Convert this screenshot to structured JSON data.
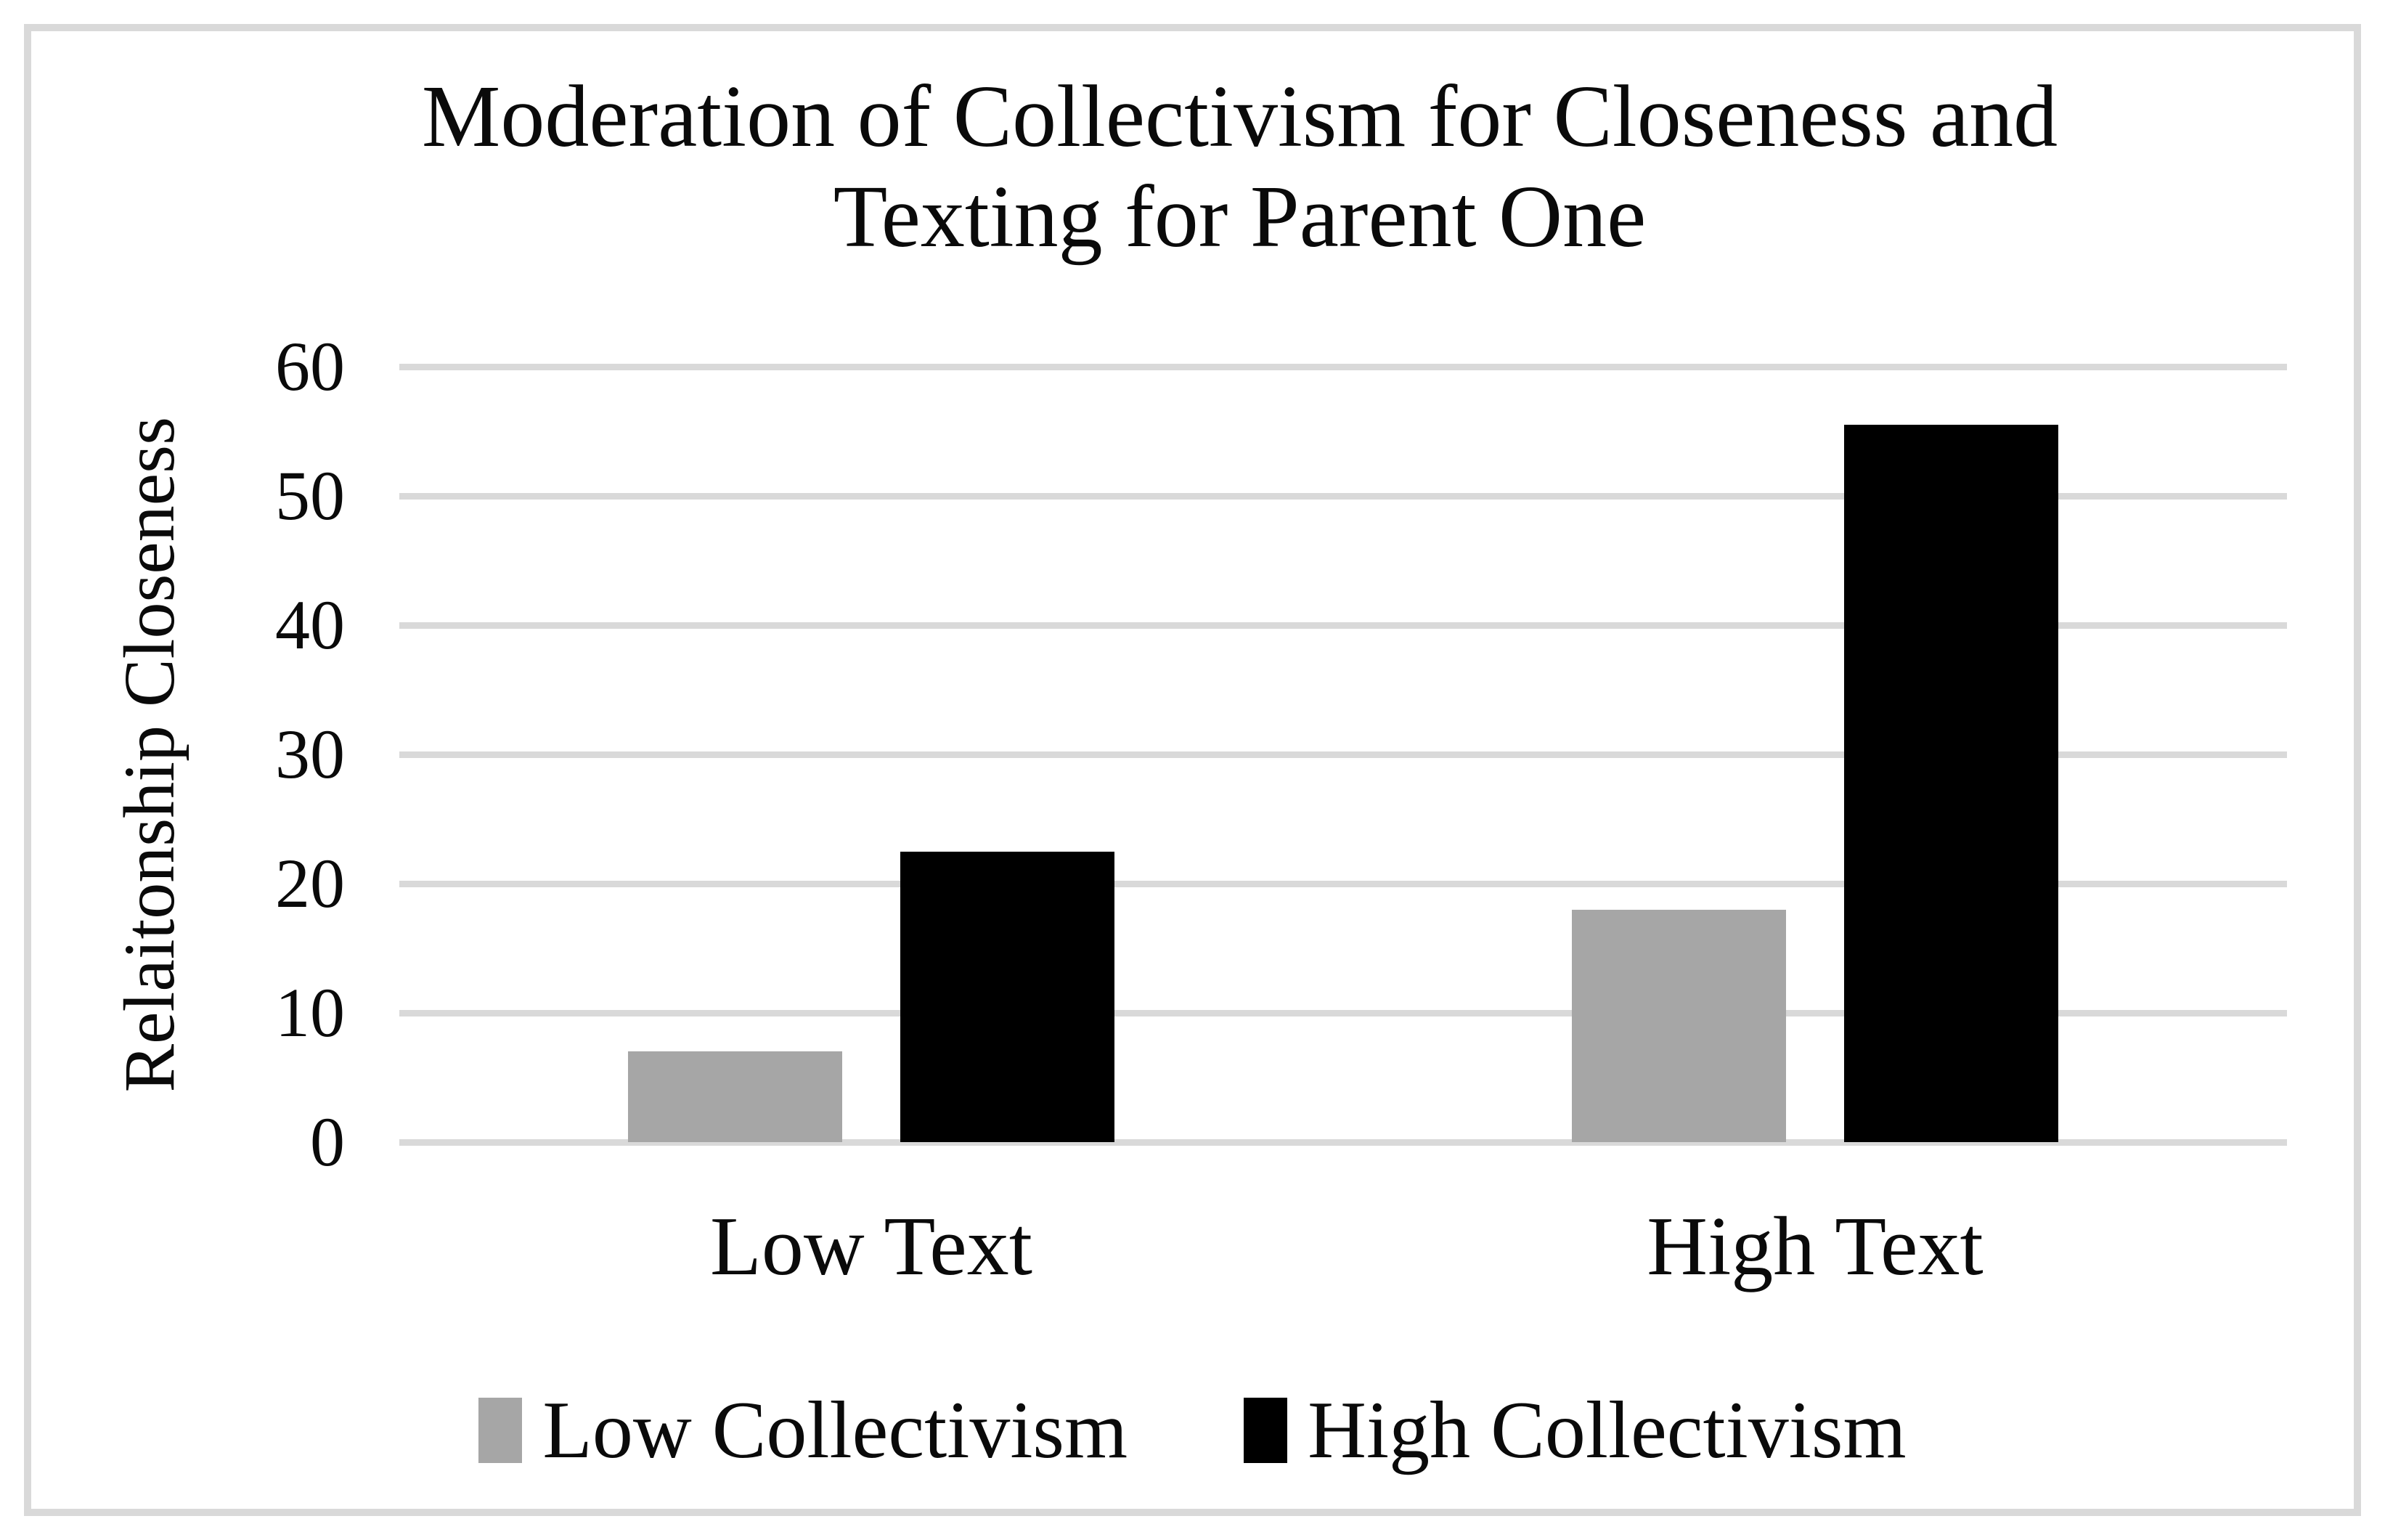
{
  "chart_data": {
    "type": "bar",
    "title": "Moderation of Collectivism for Closeness and Texting for Parent One",
    "title_lines": [
      "Moderation of Collectivism for Closeness and",
      "Texting for Parent One"
    ],
    "ylabel": "Relaitonship Closeness",
    "xlabel": "",
    "categories": [
      "Low Text",
      "High Text"
    ],
    "series": [
      {
        "name": "Low Collectivism",
        "color": "#a6a6a6",
        "values": [
          7,
          18
        ]
      },
      {
        "name": "High Collectivism",
        "color": "#000000",
        "values": [
          22.5,
          55.5
        ]
      }
    ],
    "yticks": [
      0,
      10,
      20,
      30,
      40,
      50,
      60
    ],
    "ylim": [
      0,
      60
    ],
    "grid": true,
    "legend_position": "bottom"
  },
  "colors": {
    "gridline": "#d9d9d9",
    "frame_border": "#d9d9d9",
    "bar_low_collectivism": "#a6a6a6",
    "bar_high_collectivism": "#000000",
    "text": "#0a0a0a",
    "background": "#ffffff"
  }
}
